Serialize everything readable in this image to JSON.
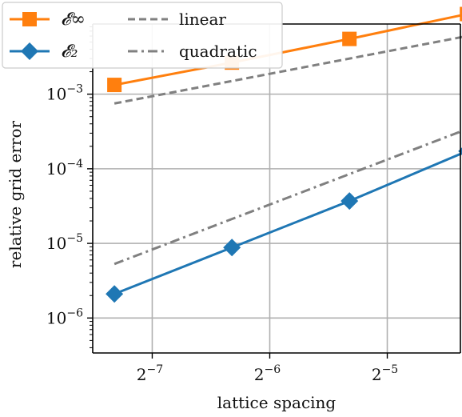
{
  "chart_data": {
    "type": "line",
    "x_scale": "log2",
    "y_scale": "log10",
    "xlabel": "lattice spacing",
    "ylabel": "relative grid error",
    "x_ticks": [
      {
        "value": 0.0078125,
        "base": "2",
        "exp": "−7"
      },
      {
        "value": 0.015625,
        "base": "2",
        "exp": "−6"
      },
      {
        "value": 0.03125,
        "base": "2",
        "exp": "−5"
      }
    ],
    "y_ticks": [
      {
        "value": 1e-06,
        "base": "10",
        "exp": "−6"
      },
      {
        "value": 1e-05,
        "base": "10",
        "exp": "−5"
      },
      {
        "value": 0.0001,
        "base": "10",
        "exp": "−4"
      },
      {
        "value": 0.001,
        "base": "10",
        "exp": "−3"
      }
    ],
    "xlim": [
      0.0055,
      0.0481
    ],
    "ylim": [
      3.4e-07,
      0.00871
    ],
    "grid": true,
    "legend_position": "top-left",
    "series": [
      {
        "name": "𝓔∞",
        "marker": "square",
        "color": "#ff7f0e",
        "dash": "solid",
        "x": [
          0.00625,
          0.0125,
          0.025,
          0.05
        ],
        "y": [
          0.00133,
          0.00265,
          0.0055,
          0.01185
        ]
      },
      {
        "name": "𝓔₂",
        "marker": "diamond",
        "color": "#1f77b4",
        "dash": "solid",
        "x": [
          0.00625,
          0.0125,
          0.025,
          0.05
        ],
        "y": [
          2.1e-06,
          8.8e-06,
          3.7e-05,
          0.000172
        ]
      },
      {
        "name": "linear",
        "marker": "none",
        "color": "#808080",
        "dash": "dashed",
        "x": [
          0.00625,
          0.05
        ],
        "y": [
          0.00075,
          0.006
        ]
      },
      {
        "name": "quadratic",
        "marker": "none",
        "color": "#808080",
        "dash": "dashdot",
        "x": [
          0.00625,
          0.05
        ],
        "y": [
          5.3e-06,
          0.00034
        ]
      }
    ]
  }
}
